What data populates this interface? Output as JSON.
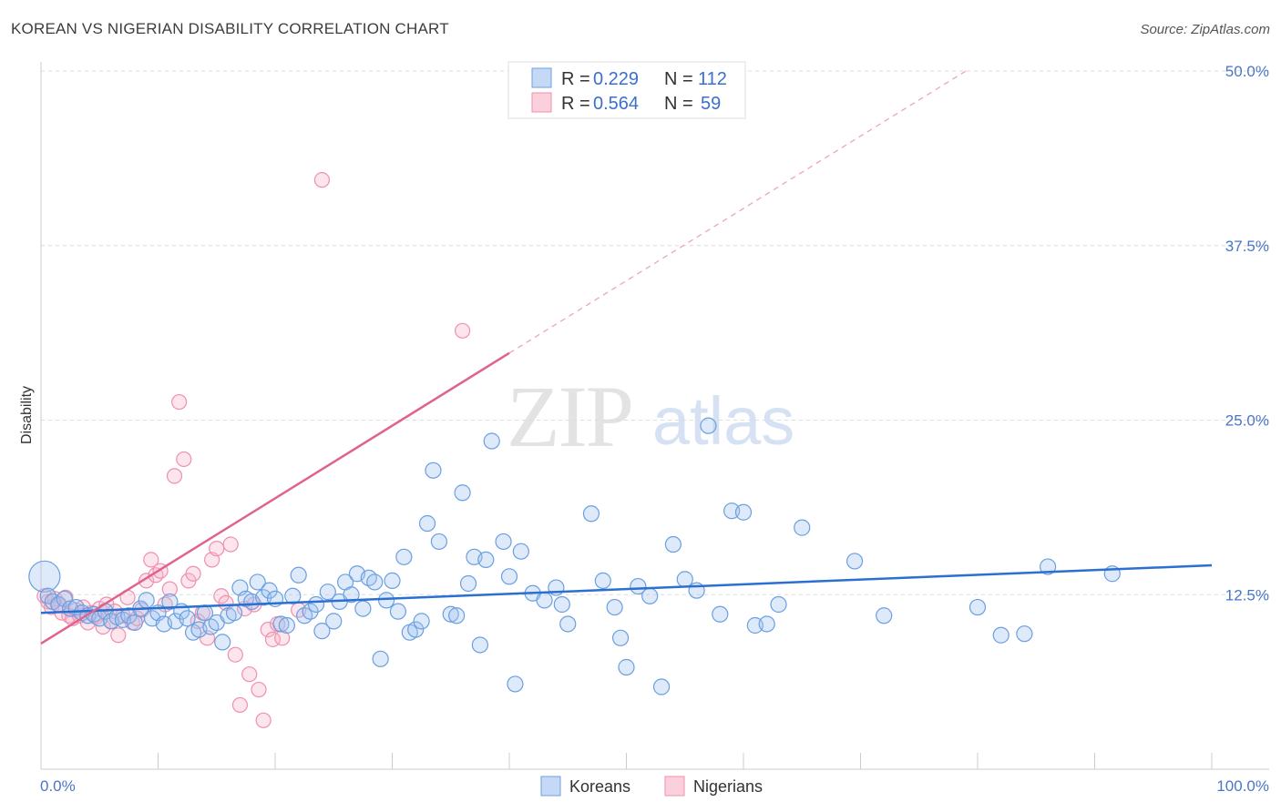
{
  "title": "KOREAN VS NIGERIAN DISABILITY CORRELATION CHART",
  "source": "Source: ZipAtlas.com",
  "watermark": {
    "zip": "ZIP",
    "atlas": "atlas"
  },
  "colors": {
    "korean": "#6a9fe0",
    "nigerian": "#f08fae",
    "korean_line": "#2a6fd1",
    "nigerian_line": "#e0628e"
  },
  "legend": {
    "korean": {
      "r_label": "R =",
      "r": "0.229",
      "n_label": "N =",
      "n": "112"
    },
    "nigerian": {
      "r_label": "R =",
      "r": "0.564",
      "n_label": "N =",
      "n": "59"
    }
  },
  "chart_data": {
    "type": "scatter",
    "ylabel": "Disability",
    "xlim": [
      0,
      100
    ],
    "ylim": [
      0,
      50
    ],
    "y_ticks": [
      "12.5%",
      "25.0%",
      "37.5%",
      "50.0%"
    ],
    "x_tick_labels": [
      "0.0%",
      "100.0%"
    ],
    "grid": true,
    "legend_placement": "top-center",
    "series": [
      {
        "name": "Koreans",
        "points": [
          [
            0.3,
            13.8
          ],
          [
            0.6,
            12.4
          ],
          [
            1.0,
            12.0
          ],
          [
            1.5,
            11.8
          ],
          [
            2.0,
            12.2
          ],
          [
            2.5,
            11.5
          ],
          [
            3.0,
            11.6
          ],
          [
            3.5,
            11.2
          ],
          [
            4.0,
            11.0
          ],
          [
            4.5,
            11.1
          ],
          [
            5.0,
            10.8
          ],
          [
            5.5,
            11.3
          ],
          [
            6.0,
            10.6
          ],
          [
            6.5,
            10.9
          ],
          [
            7.0,
            10.7
          ],
          [
            7.5,
            11.0
          ],
          [
            8.0,
            10.5
          ],
          [
            8.5,
            11.5
          ],
          [
            9.0,
            12.1
          ],
          [
            9.5,
            10.8
          ],
          [
            10.0,
            11.2
          ],
          [
            10.5,
            10.4
          ],
          [
            11.0,
            12.0
          ],
          [
            11.5,
            10.6
          ],
          [
            12.0,
            11.3
          ],
          [
            12.5,
            10.8
          ],
          [
            13.0,
            9.8
          ],
          [
            13.5,
            10.0
          ],
          [
            14.0,
            11.2
          ],
          [
            14.5,
            10.2
          ],
          [
            15.0,
            10.5
          ],
          [
            15.5,
            9.1
          ],
          [
            16.0,
            11.0
          ],
          [
            16.5,
            11.2
          ],
          [
            17.0,
            13.0
          ],
          [
            17.5,
            12.2
          ],
          [
            18.0,
            12.0
          ],
          [
            18.5,
            13.4
          ],
          [
            19.0,
            12.3
          ],
          [
            19.5,
            12.8
          ],
          [
            20.0,
            12.2
          ],
          [
            20.5,
            10.4
          ],
          [
            21.0,
            10.3
          ],
          [
            21.5,
            12.4
          ],
          [
            22.0,
            13.9
          ],
          [
            22.5,
            11.0
          ],
          [
            23.0,
            11.3
          ],
          [
            23.5,
            11.8
          ],
          [
            24.0,
            9.9
          ],
          [
            24.5,
            12.7
          ],
          [
            25.0,
            10.6
          ],
          [
            25.5,
            12.0
          ],
          [
            26.0,
            13.4
          ],
          [
            26.5,
            12.5
          ],
          [
            27.0,
            14.0
          ],
          [
            27.5,
            11.5
          ],
          [
            28.0,
            13.7
          ],
          [
            28.5,
            13.4
          ],
          [
            29.0,
            7.9
          ],
          [
            29.5,
            12.1
          ],
          [
            30.0,
            13.5
          ],
          [
            30.5,
            11.3
          ],
          [
            31.0,
            15.2
          ],
          [
            31.5,
            9.8
          ],
          [
            32.0,
            10.0
          ],
          [
            32.5,
            10.6
          ],
          [
            33.0,
            17.6
          ],
          [
            33.5,
            21.4
          ],
          [
            34.0,
            16.3
          ],
          [
            35.0,
            11.1
          ],
          [
            35.5,
            11.0
          ],
          [
            36.0,
            19.8
          ],
          [
            36.5,
            13.3
          ],
          [
            37.0,
            15.2
          ],
          [
            37.5,
            8.9
          ],
          [
            38.0,
            15.0
          ],
          [
            38.5,
            23.5
          ],
          [
            39.5,
            16.3
          ],
          [
            40.0,
            13.8
          ],
          [
            40.5,
            6.1
          ],
          [
            41.0,
            15.6
          ],
          [
            42.0,
            12.6
          ],
          [
            43.0,
            12.1
          ],
          [
            44.0,
            13.0
          ],
          [
            44.5,
            11.8
          ],
          [
            45.0,
            10.4
          ],
          [
            47.0,
            18.3
          ],
          [
            48.0,
            13.5
          ],
          [
            49.0,
            11.6
          ],
          [
            49.5,
            9.4
          ],
          [
            50.0,
            7.3
          ],
          [
            51.0,
            13.1
          ],
          [
            52.0,
            12.4
          ],
          [
            53.0,
            5.9
          ],
          [
            54.0,
            16.1
          ],
          [
            55.0,
            13.6
          ],
          [
            56.0,
            12.8
          ],
          [
            57.0,
            24.6
          ],
          [
            58.0,
            11.1
          ],
          [
            59.0,
            18.5
          ],
          [
            60.0,
            18.4
          ],
          [
            61.0,
            10.3
          ],
          [
            62.0,
            10.4
          ],
          [
            63.0,
            11.8
          ],
          [
            65.0,
            17.3
          ],
          [
            69.5,
            14.9
          ],
          [
            80.0,
            11.6
          ],
          [
            82.0,
            9.6
          ],
          [
            84.0,
            9.7
          ],
          [
            86.0,
            14.5
          ],
          [
            91.5,
            14.0
          ],
          [
            72.0,
            11.0
          ]
        ]
      },
      {
        "name": "Nigerians",
        "points": [
          [
            0.3,
            12.4
          ],
          [
            0.6,
            12.0
          ],
          [
            0.9,
            11.6
          ],
          [
            1.2,
            12.2
          ],
          [
            1.5,
            11.8
          ],
          [
            1.8,
            11.2
          ],
          [
            2.1,
            12.3
          ],
          [
            2.4,
            11.0
          ],
          [
            2.7,
            10.8
          ],
          [
            3.0,
            11.4
          ],
          [
            3.3,
            11.0
          ],
          [
            3.6,
            11.6
          ],
          [
            4.0,
            10.5
          ],
          [
            4.3,
            11.2
          ],
          [
            4.7,
            10.9
          ],
          [
            5.0,
            11.5
          ],
          [
            5.3,
            10.2
          ],
          [
            5.6,
            11.8
          ],
          [
            6.0,
            10.6
          ],
          [
            6.3,
            11.3
          ],
          [
            6.6,
            9.6
          ],
          [
            7.0,
            11.0
          ],
          [
            7.4,
            12.3
          ],
          [
            7.8,
            10.5
          ],
          [
            8.2,
            10.8
          ],
          [
            8.6,
            11.4
          ],
          [
            9.0,
            13.5
          ],
          [
            9.4,
            15.0
          ],
          [
            9.8,
            13.9
          ],
          [
            10.2,
            14.2
          ],
          [
            10.6,
            11.8
          ],
          [
            11.0,
            12.9
          ],
          [
            11.4,
            21.0
          ],
          [
            11.8,
            26.3
          ],
          [
            12.2,
            22.2
          ],
          [
            12.6,
            13.5
          ],
          [
            13.0,
            14.0
          ],
          [
            13.4,
            10.6
          ],
          [
            13.8,
            11.2
          ],
          [
            14.2,
            9.4
          ],
          [
            14.6,
            15.0
          ],
          [
            15.0,
            15.8
          ],
          [
            15.4,
            12.4
          ],
          [
            15.8,
            11.9
          ],
          [
            16.2,
            16.1
          ],
          [
            16.6,
            8.2
          ],
          [
            17.0,
            4.6
          ],
          [
            17.4,
            11.5
          ],
          [
            17.8,
            6.8
          ],
          [
            18.2,
            11.8
          ],
          [
            18.6,
            5.7
          ],
          [
            19.0,
            3.5
          ],
          [
            19.4,
            10.0
          ],
          [
            19.8,
            9.3
          ],
          [
            20.2,
            10.4
          ],
          [
            20.6,
            9.4
          ],
          [
            24.0,
            42.2
          ],
          [
            36.0,
            31.4
          ],
          [
            22.0,
            11.4
          ]
        ]
      }
    ],
    "trend_lines": {
      "Koreans": {
        "x": [
          0,
          100
        ],
        "y": [
          11.2,
          14.6
        ]
      },
      "Nigerians": {
        "x": [
          0,
          40
        ],
        "y": [
          9.0,
          29.8
        ],
        "dashed_extension_to": [
          79,
          50
        ]
      }
    }
  }
}
